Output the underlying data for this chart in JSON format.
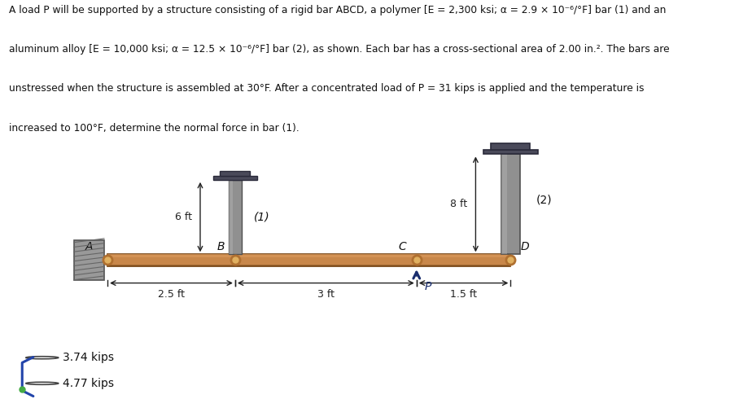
{
  "title_line1": "A load P will be supported by a structure consisting of a rigid bar ABCD, a polymer [E = 2,300 ksi; α = 2.9 × 10⁻⁶/°F] bar (1) and an",
  "title_line2": "aluminum alloy [E = 10,000 ksi; α = 12.5 × 10⁻⁶/°F] bar (2), as shown. Each bar has a cross-sectional area of 2.00 in.². The bars are",
  "title_line3": "unstressed when the structure is assembled at 30°F. After a concentrated load of P = 31 kips is applied and the temperature is",
  "title_line4": "increased to 100°F, determine the normal force in bar (1).",
  "bg_color": "#ffffff",
  "bar_fill": "#c8874a",
  "bar_edge": "#7a4a1a",
  "bar_highlight": "#d9975a",
  "member_fill": "#909090",
  "member_edge": "#505050",
  "cap_fill": "#4a4a5a",
  "cap_edge": "#2a2a3a",
  "wall_fill": "#888888",
  "wall_hatch_color": "#555555",
  "pin_outer": "#b07030",
  "pin_inner": "#e0b060",
  "arrow_color": "#1a2e6e",
  "dim_color": "#222222",
  "text_color": "#111111",
  "choice1": "3.74 kips",
  "choice2": "4.77 kips",
  "xlim": [
    0,
    11
  ],
  "ylim": [
    0,
    10.5
  ]
}
